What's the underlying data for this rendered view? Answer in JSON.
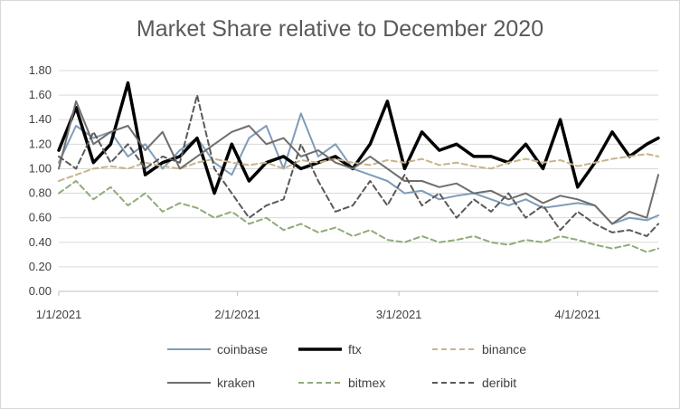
{
  "chart_data": {
    "type": "line",
    "title": "Market Share relative to December 2020",
    "xlabel": "",
    "ylabel": "",
    "x_range": [
      "2021-01-01",
      "2021-04-15"
    ],
    "ylim": [
      0,
      1.8
    ],
    "y_ticks": [
      "0.00",
      "0.20",
      "0.40",
      "0.60",
      "0.80",
      "1.00",
      "1.20",
      "1.40",
      "1.60",
      "1.80"
    ],
    "x_ticks": [
      {
        "label": "1/1/2021",
        "date": "2021-01-01"
      },
      {
        "label": "2/1/2021",
        "date": "2021-02-01"
      },
      {
        "label": "3/1/2021",
        "date": "2021-03-01"
      },
      {
        "label": "4/1/2021",
        "date": "2021-04-01"
      }
    ],
    "grid": true,
    "legend_position": "bottom",
    "dates": [
      "2021-01-01",
      "2021-01-04",
      "2021-01-07",
      "2021-01-10",
      "2021-01-13",
      "2021-01-16",
      "2021-01-19",
      "2021-01-22",
      "2021-01-25",
      "2021-01-28",
      "2021-01-31",
      "2021-02-03",
      "2021-02-06",
      "2021-02-09",
      "2021-02-12",
      "2021-02-15",
      "2021-02-18",
      "2021-02-21",
      "2021-02-24",
      "2021-02-27",
      "2021-03-02",
      "2021-03-05",
      "2021-03-08",
      "2021-03-11",
      "2021-03-14",
      "2021-03-17",
      "2021-03-20",
      "2021-03-23",
      "2021-03-26",
      "2021-03-29",
      "2021-04-01",
      "2021-04-04",
      "2021-04-07",
      "2021-04-10",
      "2021-04-13",
      "2021-04-15"
    ],
    "series": [
      {
        "name": "coinbase",
        "color": "#7f9cb8",
        "width": 2,
        "dash": "",
        "values": [
          1.05,
          1.35,
          1.25,
          1.3,
          1.1,
          1.2,
          1.0,
          1.15,
          1.25,
          1.05,
          0.95,
          1.25,
          1.35,
          1.0,
          1.45,
          1.1,
          1.2,
          1.0,
          0.95,
          0.9,
          0.8,
          0.82,
          0.75,
          0.78,
          0.8,
          0.75,
          0.7,
          0.75,
          0.68,
          0.7,
          0.72,
          0.7,
          0.55,
          0.6,
          0.58,
          0.62
        ]
      },
      {
        "name": "ftx",
        "color": "#000000",
        "width": 3.5,
        "dash": "",
        "values": [
          1.15,
          1.5,
          1.05,
          1.2,
          1.7,
          0.95,
          1.05,
          1.1,
          1.25,
          0.8,
          1.2,
          0.9,
          1.05,
          1.1,
          1.0,
          1.05,
          1.1,
          1.0,
          1.2,
          1.55,
          1.0,
          1.3,
          1.15,
          1.2,
          1.1,
          1.1,
          1.05,
          1.2,
          1.0,
          1.4,
          0.85,
          1.05,
          1.3,
          1.1,
          1.2,
          1.25
        ]
      },
      {
        "name": "binance",
        "color": "#c8b48c",
        "width": 2,
        "dash": "6 4",
        "values": [
          0.9,
          0.95,
          1.0,
          1.02,
          1.0,
          1.05,
          1.02,
          1.0,
          1.05,
          1.08,
          1.05,
          1.03,
          1.05,
          1.0,
          1.07,
          1.05,
          1.08,
          1.05,
          1.03,
          1.07,
          1.05,
          1.08,
          1.03,
          1.05,
          1.02,
          1.0,
          1.05,
          1.08,
          1.05,
          1.07,
          1.02,
          1.05,
          1.08,
          1.1,
          1.12,
          1.1
        ]
      },
      {
        "name": "kraken",
        "color": "#6e6e6e",
        "width": 2,
        "dash": "",
        "values": [
          1.0,
          1.55,
          1.2,
          1.3,
          1.35,
          1.15,
          1.3,
          1.0,
          1.1,
          1.2,
          1.3,
          1.35,
          1.2,
          1.25,
          1.1,
          1.15,
          1.05,
          1.0,
          1.1,
          1.0,
          0.9,
          0.9,
          0.85,
          0.88,
          0.8,
          0.82,
          0.75,
          0.8,
          0.72,
          0.78,
          0.75,
          0.7,
          0.55,
          0.65,
          0.6,
          0.95
        ]
      },
      {
        "name": "bitmex",
        "color": "#8fab7a",
        "width": 2,
        "dash": "6 4",
        "values": [
          0.8,
          0.9,
          0.75,
          0.85,
          0.7,
          0.8,
          0.65,
          0.72,
          0.68,
          0.6,
          0.65,
          0.55,
          0.6,
          0.5,
          0.55,
          0.48,
          0.52,
          0.45,
          0.5,
          0.42,
          0.4,
          0.45,
          0.4,
          0.42,
          0.45,
          0.4,
          0.38,
          0.42,
          0.4,
          0.45,
          0.42,
          0.38,
          0.35,
          0.38,
          0.32,
          0.35
        ]
      },
      {
        "name": "deribit",
        "color": "#595959",
        "width": 2,
        "dash": "6 4",
        "values": [
          1.1,
          1.0,
          1.3,
          1.05,
          1.2,
          1.0,
          1.1,
          1.05,
          1.6,
          1.0,
          0.8,
          0.6,
          0.7,
          0.75,
          1.2,
          0.9,
          0.65,
          0.7,
          0.9,
          0.7,
          0.95,
          0.7,
          0.8,
          0.6,
          0.75,
          0.65,
          0.8,
          0.6,
          0.7,
          0.5,
          0.65,
          0.55,
          0.48,
          0.5,
          0.45,
          0.55
        ]
      }
    ]
  }
}
